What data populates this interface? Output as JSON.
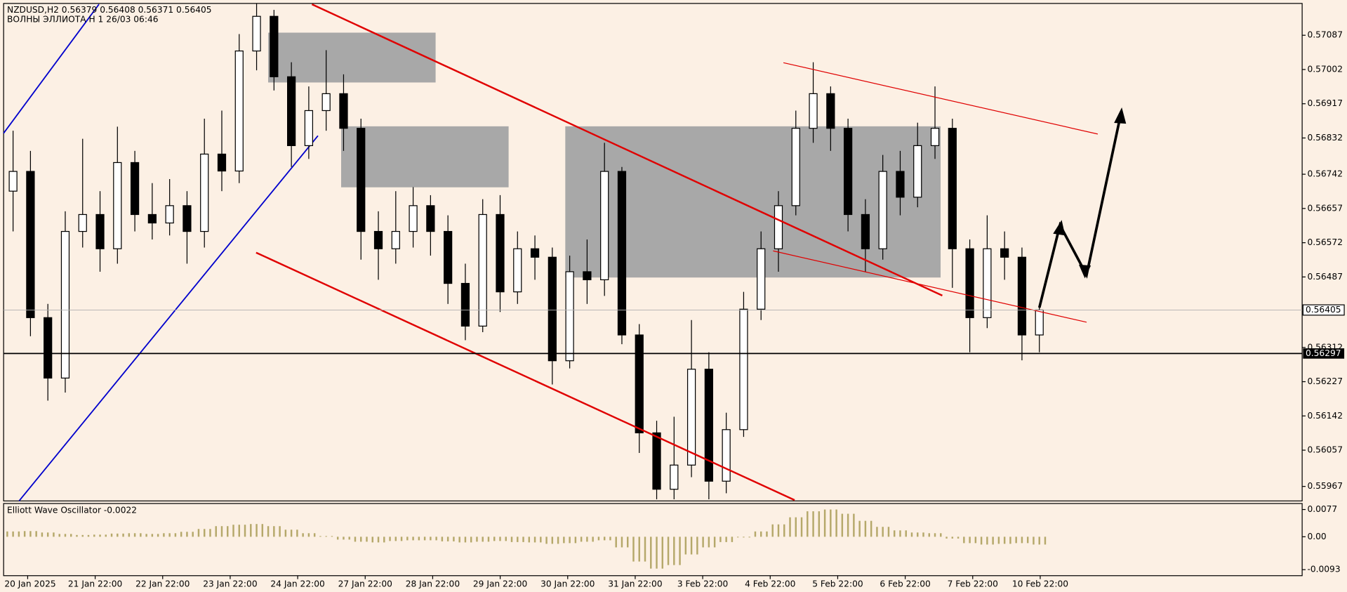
{
  "chart_data": {
    "type": "candlestick",
    "title": "NZDUSD,H2  0.56379 0.56408 0.56371 0.56405",
    "subtitle": "ВОЛНЫ ЭЛЛИОТА H 1 26/03 06:46",
    "categories": [
      "20 Jan 2025",
      "21 Jan 22:00",
      "22 Jan 22:00",
      "23 Jan 22:00",
      "24 Jan 22:00",
      "27 Jan 22:00",
      "28 Jan 22:00",
      "29 Jan 22:00",
      "30 Jan 22:00",
      "31 Jan 22:00",
      "3 Feb 22:00",
      "4 Feb 22:00",
      "5 Feb 22:00",
      "6 Feb 22:00",
      "7 Feb 22:00",
      "10 Feb 22:00"
    ],
    "open": [
      0.567,
      0.56749,
      0.56386,
      0.56236,
      0.566,
      0.56642,
      0.56557,
      0.56771,
      0.56642,
      0.56621,
      0.56664,
      0.566,
      0.56792,
      0.5675,
      0.57048,
      0.57134,
      0.56984,
      0.56813,
      0.569,
      0.56942,
      0.56856,
      0.566,
      0.56557,
      0.566,
      0.56664,
      0.566,
      0.56471,
      0.56365,
      0.56642,
      0.5645,
      0.56557,
      0.56536,
      0.56279,
      0.565,
      0.5648,
      0.56749,
      0.56343,
      0.561,
      0.5596,
      0.5602,
      0.56258,
      0.5598,
      0.56108,
      0.56407,
      0.56557,
      0.56664,
      0.56856,
      0.56942,
      0.56856,
      0.56642,
      0.56557,
      0.56749,
      0.56685,
      0.56813,
      0.56856,
      0.56557,
      0.56386,
      0.56557,
      0.56536,
      0.56343
    ],
    "high": [
      0.5685,
      0.568,
      0.5642,
      0.5665,
      0.5683,
      0.567,
      0.5686,
      0.568,
      0.5672,
      0.5673,
      0.567,
      0.5688,
      0.569,
      0.5709,
      0.57166,
      0.5715,
      0.5702,
      0.5696,
      0.5705,
      0.5699,
      0.5688,
      0.5665,
      0.567,
      0.5671,
      0.5669,
      0.5664,
      0.5652,
      0.5668,
      0.5669,
      0.566,
      0.5659,
      0.5656,
      0.5654,
      0.5658,
      0.5682,
      0.5676,
      0.5637,
      0.5613,
      0.5614,
      0.5638,
      0.563,
      0.5615,
      0.5645,
      0.566,
      0.567,
      0.569,
      0.5702,
      0.5696,
      0.5688,
      0.5668,
      0.5679,
      0.568,
      0.5687,
      0.5696,
      0.5688,
      0.5658,
      0.5664,
      0.566,
      0.5656,
      0.5642
    ],
    "low": [
      0.566,
      0.5634,
      0.5618,
      0.562,
      0.5656,
      0.565,
      0.5652,
      0.566,
      0.5658,
      0.5659,
      0.5652,
      0.5656,
      0.567,
      0.5672,
      0.57,
      0.5695,
      0.5676,
      0.5678,
      0.5685,
      0.568,
      0.5653,
      0.5648,
      0.5652,
      0.5656,
      0.5654,
      0.5642,
      0.5633,
      0.5635,
      0.564,
      0.5642,
      0.5648,
      0.5622,
      0.5626,
      0.5642,
      0.5644,
      0.5632,
      0.5605,
      0.55935,
      0.55935,
      0.5599,
      0.55935,
      0.5595,
      0.5609,
      0.5638,
      0.565,
      0.5664,
      0.5682,
      0.568,
      0.566,
      0.565,
      0.5653,
      0.5664,
      0.5666,
      0.5678,
      0.5646,
      0.563,
      0.5636,
      0.5648,
      0.5628,
      0.563
    ],
    "close": [
      0.56749,
      0.56386,
      0.56236,
      0.566,
      0.56642,
      0.56557,
      0.56771,
      0.56642,
      0.56621,
      0.56664,
      0.566,
      0.56792,
      0.5675,
      0.57048,
      0.57134,
      0.56984,
      0.56813,
      0.569,
      0.56942,
      0.56856,
      0.566,
      0.56557,
      0.566,
      0.56664,
      0.566,
      0.56471,
      0.56365,
      0.56642,
      0.5645,
      0.56557,
      0.56536,
      0.56279,
      0.565,
      0.5648,
      0.56749,
      0.56343,
      0.561,
      0.5596,
      0.5602,
      0.56258,
      0.5598,
      0.56108,
      0.56407,
      0.56557,
      0.56664,
      0.56856,
      0.56942,
      0.56856,
      0.56642,
      0.56557,
      0.56749,
      0.56685,
      0.56813,
      0.56856,
      0.56557,
      0.56386,
      0.56557,
      0.56536,
      0.56343,
      0.56405
    ],
    "up_color": "#ffffff",
    "down_color": "#000000",
    "ylim": [
      0.55931,
      0.57166
    ],
    "yticks": [
      0.57087,
      0.57002,
      0.56917,
      0.56832,
      0.56742,
      0.56657,
      0.56572,
      0.56487,
      0.56312,
      0.56227,
      0.56142,
      0.56057,
      0.55967
    ],
    "current_price": 0.56405,
    "level": 0.56297,
    "oscillator": {
      "title": "Elliott Wave Oscillator -0.0022",
      "color": "#b5a86a",
      "values": [
        0.0015,
        0.0016,
        0.0012,
        0.0008,
        0.0005,
        0.0006,
        0.0009,
        0.001,
        0.0008,
        0.001,
        0.0014,
        0.0022,
        0.003,
        0.0034,
        0.0036,
        0.003,
        0.002,
        0.001,
        0.0002,
        -0.0008,
        -0.0014,
        -0.0016,
        -0.0012,
        -0.001,
        -0.001,
        -0.0013,
        -0.0016,
        -0.0014,
        -0.0012,
        -0.0015,
        -0.0016,
        -0.002,
        -0.0018,
        -0.0014,
        -0.001,
        -0.003,
        -0.007,
        -0.009,
        -0.008,
        -0.005,
        -0.003,
        -0.0015,
        -0.0002,
        0.0015,
        0.0035,
        0.0055,
        0.0072,
        0.0077,
        0.0065,
        0.0045,
        0.0028,
        0.0018,
        0.0012,
        0.001,
        -0.0005,
        -0.0018,
        -0.0022,
        -0.002,
        -0.0018,
        -0.0022
      ],
      "ylim": [
        -0.011,
        0.0094
      ],
      "yticks": [
        0.0077,
        {
          "value": 0,
          "label": "0.00"
        },
        -0.0093
      ]
    }
  }
}
